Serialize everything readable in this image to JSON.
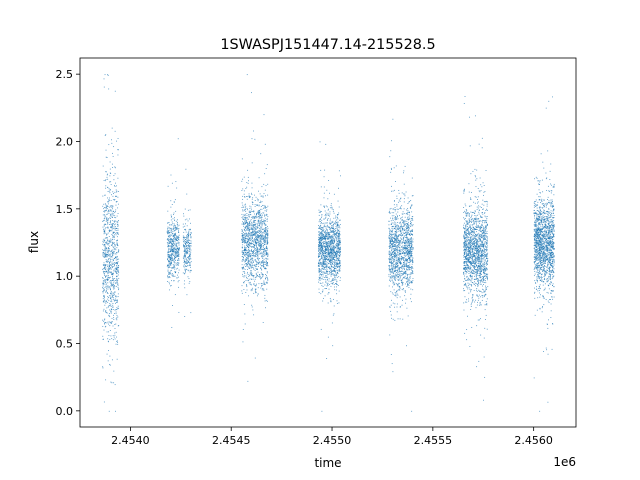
{
  "chart_data": {
    "type": "scatter",
    "title": "1SWASPJ151447.14-215528.5",
    "xlabel": "time",
    "ylabel": "flux",
    "x_offset_label": "1e6",
    "xlim": [
      2.45375,
      2.45621
    ],
    "ylim": [
      -0.12,
      2.62
    ],
    "xticks": [
      2.454,
      2.4545,
      2.455,
      2.4555,
      2.456
    ],
    "xtick_labels": [
      "2.4540",
      "2.4545",
      "2.4550",
      "2.4555",
      "2.4560"
    ],
    "yticks": [
      0.0,
      0.5,
      1.0,
      1.5,
      2.0,
      2.5
    ],
    "ytick_labels": [
      "0.0",
      "0.5",
      "1.0",
      "1.5",
      "2.0",
      "2.5"
    ],
    "grid": false,
    "marker_color": "#1f77b4",
    "series": [
      {
        "segments": [
          {
            "x_start": 2.45386,
            "x_end": 2.45394,
            "median": 1.15,
            "spread": 0.3,
            "points": 900
          },
          {
            "x_start": 2.45418,
            "x_end": 2.45424,
            "median": 1.2,
            "spread": 0.12,
            "points": 500
          },
          {
            "x_start": 2.45426,
            "x_end": 2.4543,
            "median": 1.2,
            "spread": 0.11,
            "points": 250
          },
          {
            "x_start": 2.45455,
            "x_end": 2.45468,
            "median": 1.25,
            "spread": 0.17,
            "points": 1300
          },
          {
            "x_start": 2.45493,
            "x_end": 2.45504,
            "median": 1.2,
            "spread": 0.13,
            "points": 1300
          },
          {
            "x_start": 2.45528,
            "x_end": 2.4554,
            "median": 1.2,
            "spread": 0.16,
            "points": 1300
          },
          {
            "x_start": 2.45565,
            "x_end": 2.45577,
            "median": 1.2,
            "spread": 0.17,
            "points": 1500
          },
          {
            "x_start": 2.456,
            "x_end": 2.4561,
            "median": 1.25,
            "spread": 0.17,
            "points": 1500
          }
        ]
      }
    ]
  }
}
